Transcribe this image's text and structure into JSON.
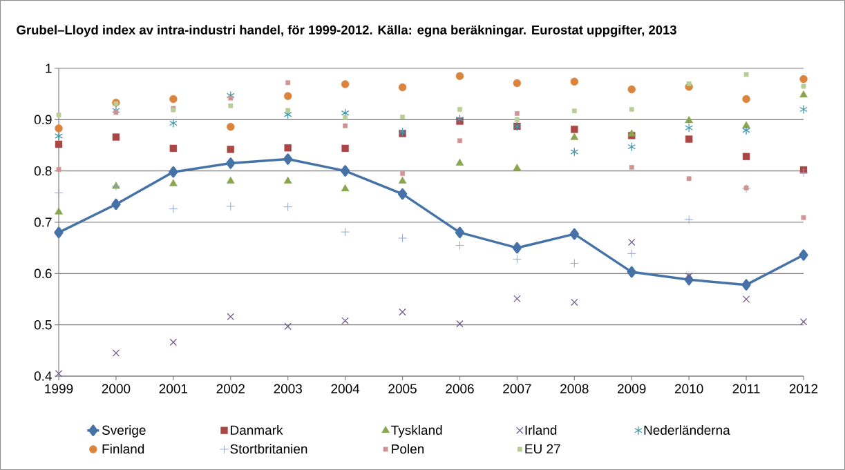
{
  "chart_data": {
    "type": "scatter",
    "title": "Grubel–Lloyd index av intra-industri handel, för 1999-2012. Källa: egna beräkningar. Eurostat uppgifter, 2013",
    "categories": [
      "1999",
      "2000",
      "2001",
      "2002",
      "2003",
      "2004",
      "2005",
      "2006",
      "2007",
      "2008",
      "2009",
      "2010",
      "2011",
      "2012"
    ],
    "ylim": [
      0.4,
      1
    ],
    "yticks": [
      0.4,
      0.5,
      0.6,
      0.7,
      0.8,
      0.9,
      1
    ],
    "grid": "y",
    "legend": "bottom",
    "series": [
      {
        "name": "Sverige",
        "type": "line",
        "marker": "diamond",
        "color": "#4572a7",
        "values": [
          0.68,
          0.735,
          0.798,
          0.815,
          0.823,
          0.8,
          0.755,
          0.68,
          0.65,
          0.677,
          0.603,
          0.588,
          0.578,
          0.636
        ]
      },
      {
        "name": "Danmark",
        "marker": "square",
        "color": "#aa4643",
        "values": [
          0.852,
          0.866,
          0.844,
          0.842,
          0.845,
          0.844,
          0.873,
          0.897,
          0.887,
          0.881,
          0.869,
          0.862,
          0.828,
          0.802
        ]
      },
      {
        "name": "Tyskland",
        "marker": "triangle",
        "color": "#89a54e",
        "values": [
          0.72,
          0.77,
          0.775,
          0.78,
          0.78,
          0.765,
          0.78,
          0.815,
          0.805,
          0.865,
          0.872,
          0.898,
          0.888,
          0.948
        ]
      },
      {
        "name": "Irland",
        "marker": "cross",
        "color": "#71588f",
        "values": [
          0.405,
          0.445,
          0.466,
          0.516,
          0.497,
          0.508,
          0.525,
          0.502,
          0.551,
          0.544,
          0.661,
          0.595,
          0.55,
          0.506
        ]
      },
      {
        "name": "Nederländerna",
        "marker": "cross",
        "color": "#4198af",
        "values": [
          0.868,
          0.918,
          0.893,
          0.947,
          0.91,
          0.913,
          0.876,
          0.901,
          0.887,
          0.837,
          0.847,
          0.884,
          0.879,
          0.92
        ]
      },
      {
        "name": "Finland",
        "marker": "circle",
        "color": "#db843d",
        "values": [
          0.883,
          0.933,
          0.94,
          0.886,
          0.946,
          0.969,
          0.963,
          0.985,
          0.971,
          0.974,
          0.959,
          0.964,
          0.94,
          0.979
        ]
      },
      {
        "name": "Stortbritanien",
        "marker": "plus",
        "color": "#93a9cf",
        "values": [
          0.757,
          0.77,
          0.726,
          0.731,
          0.73,
          0.681,
          0.669,
          0.655,
          0.628,
          0.62,
          0.639,
          0.705,
          0.766,
          0.797
        ]
      },
      {
        "name": "Polen",
        "marker": "square",
        "color": "#d19392",
        "values": [
          0.803,
          0.914,
          0.922,
          0.942,
          0.972,
          0.888,
          0.795,
          0.859,
          0.912,
          null,
          0.807,
          0.785,
          0.767,
          0.709
        ]
      },
      {
        "name": "EU 27",
        "marker": "square",
        "color": "#b9cd96",
        "values": [
          0.909,
          0.931,
          0.919,
          0.927,
          0.918,
          0.904,
          0.905,
          0.92,
          0.9,
          0.917,
          0.92,
          0.97,
          0.988,
          0.965
        ]
      }
    ]
  }
}
